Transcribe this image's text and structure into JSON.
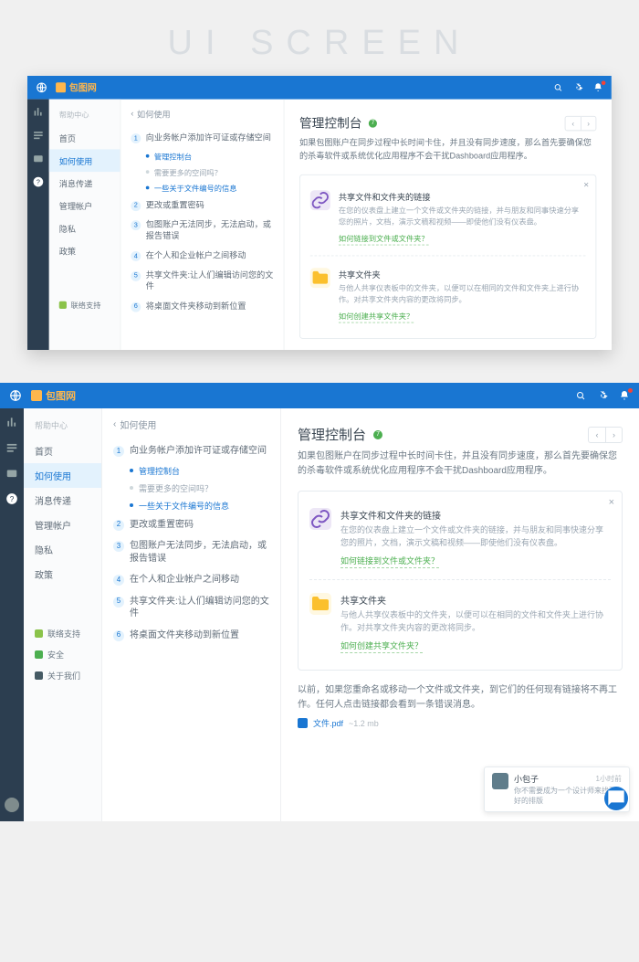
{
  "outer_title": "UI SCREEN",
  "colors": {
    "topbar": "#1976d2",
    "rail": "#2c3e50",
    "accent_orange": "#ffb74d",
    "green": "#4caf50",
    "purple_bg": "#ede7f6",
    "yellow_bg": "#fff8e1",
    "text_dark": "#3a4652",
    "text_muted": "#9aa6b2"
  },
  "topbar": {
    "brand": "包图网",
    "search_label": "Q",
    "settings_label": "⚙",
    "bell_label": "🔔"
  },
  "rail": {
    "items": [
      "chart",
      "list",
      "wallet",
      "help"
    ]
  },
  "nav": {
    "title": "帮助中心",
    "items": [
      {
        "label": "首页"
      },
      {
        "label": "如何使用",
        "selected": true
      },
      {
        "label": "消息传递"
      },
      {
        "label": "管理帐户"
      },
      {
        "label": "隐私"
      },
      {
        "label": "政策"
      }
    ],
    "footer": [
      {
        "label": "联络支持",
        "color": "g1"
      },
      {
        "label": "安全",
        "color": "g2"
      },
      {
        "label": "关于我们",
        "color": "g3"
      }
    ]
  },
  "mid": {
    "crumb_back": "‹",
    "crumb_title": "如何使用",
    "items": [
      {
        "n": "1",
        "label": "向业务帐户添加许可证或存储空间",
        "subs": [
          {
            "label": "管理控制台",
            "link": true
          },
          {
            "label": "需要更多的空间吗？"
          },
          {
            "label": "一些关于文件编号的信息",
            "link": true
          }
        ]
      },
      {
        "n": "2",
        "label": "更改或重置密码"
      },
      {
        "n": "3",
        "label": "包图账户无法同步，无法启动，或报告错误"
      },
      {
        "n": "4",
        "label": "在个人和企业帐户之间移动"
      },
      {
        "n": "5",
        "label": "共享文件夹:让人们编辑访问您的文件"
      },
      {
        "n": "6",
        "label": "将桌面文件夹移动到新位置"
      }
    ]
  },
  "main": {
    "title": "管理控制台",
    "badge": "7",
    "pager_prev": "‹",
    "pager_next": "›",
    "desc": "如果包图账户在同步过程中长时间卡住，并且没有同步速度，那么首先要确保您的杀毒软件或系统优化应用程序不会干扰Dashboard应用程序。",
    "cards": [
      {
        "icon": "link",
        "icon_class": "ci-purple",
        "title": "共享文件和文件夹的链接",
        "desc": "在您的仪表盘上建立一个文件或文件夹的链接，并与朋友和同事快速分享您的照片，文档，演示文稿和视频——即使他们没有仪表盘。",
        "green": "如何链接到文件或文件夹？"
      },
      {
        "icon": "folder",
        "icon_class": "ci-yellow",
        "title": "共享文件夹",
        "desc": "与他人共享仪表板中的文件夹，以便可以在相同的文件和文件夹上进行协作。对共享文件夹内容的更改将同步。",
        "green": "如何创建共享文件夹？"
      }
    ],
    "tail": "以前，如果您重命名或移动一个文件或文件夹，到它们的任何现有链接将不再工作。任何人点击链接都会看到一条错误消息。",
    "file_name": "文件.pdf",
    "file_size": "~1.2 mb"
  },
  "toast": {
    "name": "小包子",
    "time": "1小时前",
    "msg": "你不需要成为一个设计师来找更好的排版"
  }
}
